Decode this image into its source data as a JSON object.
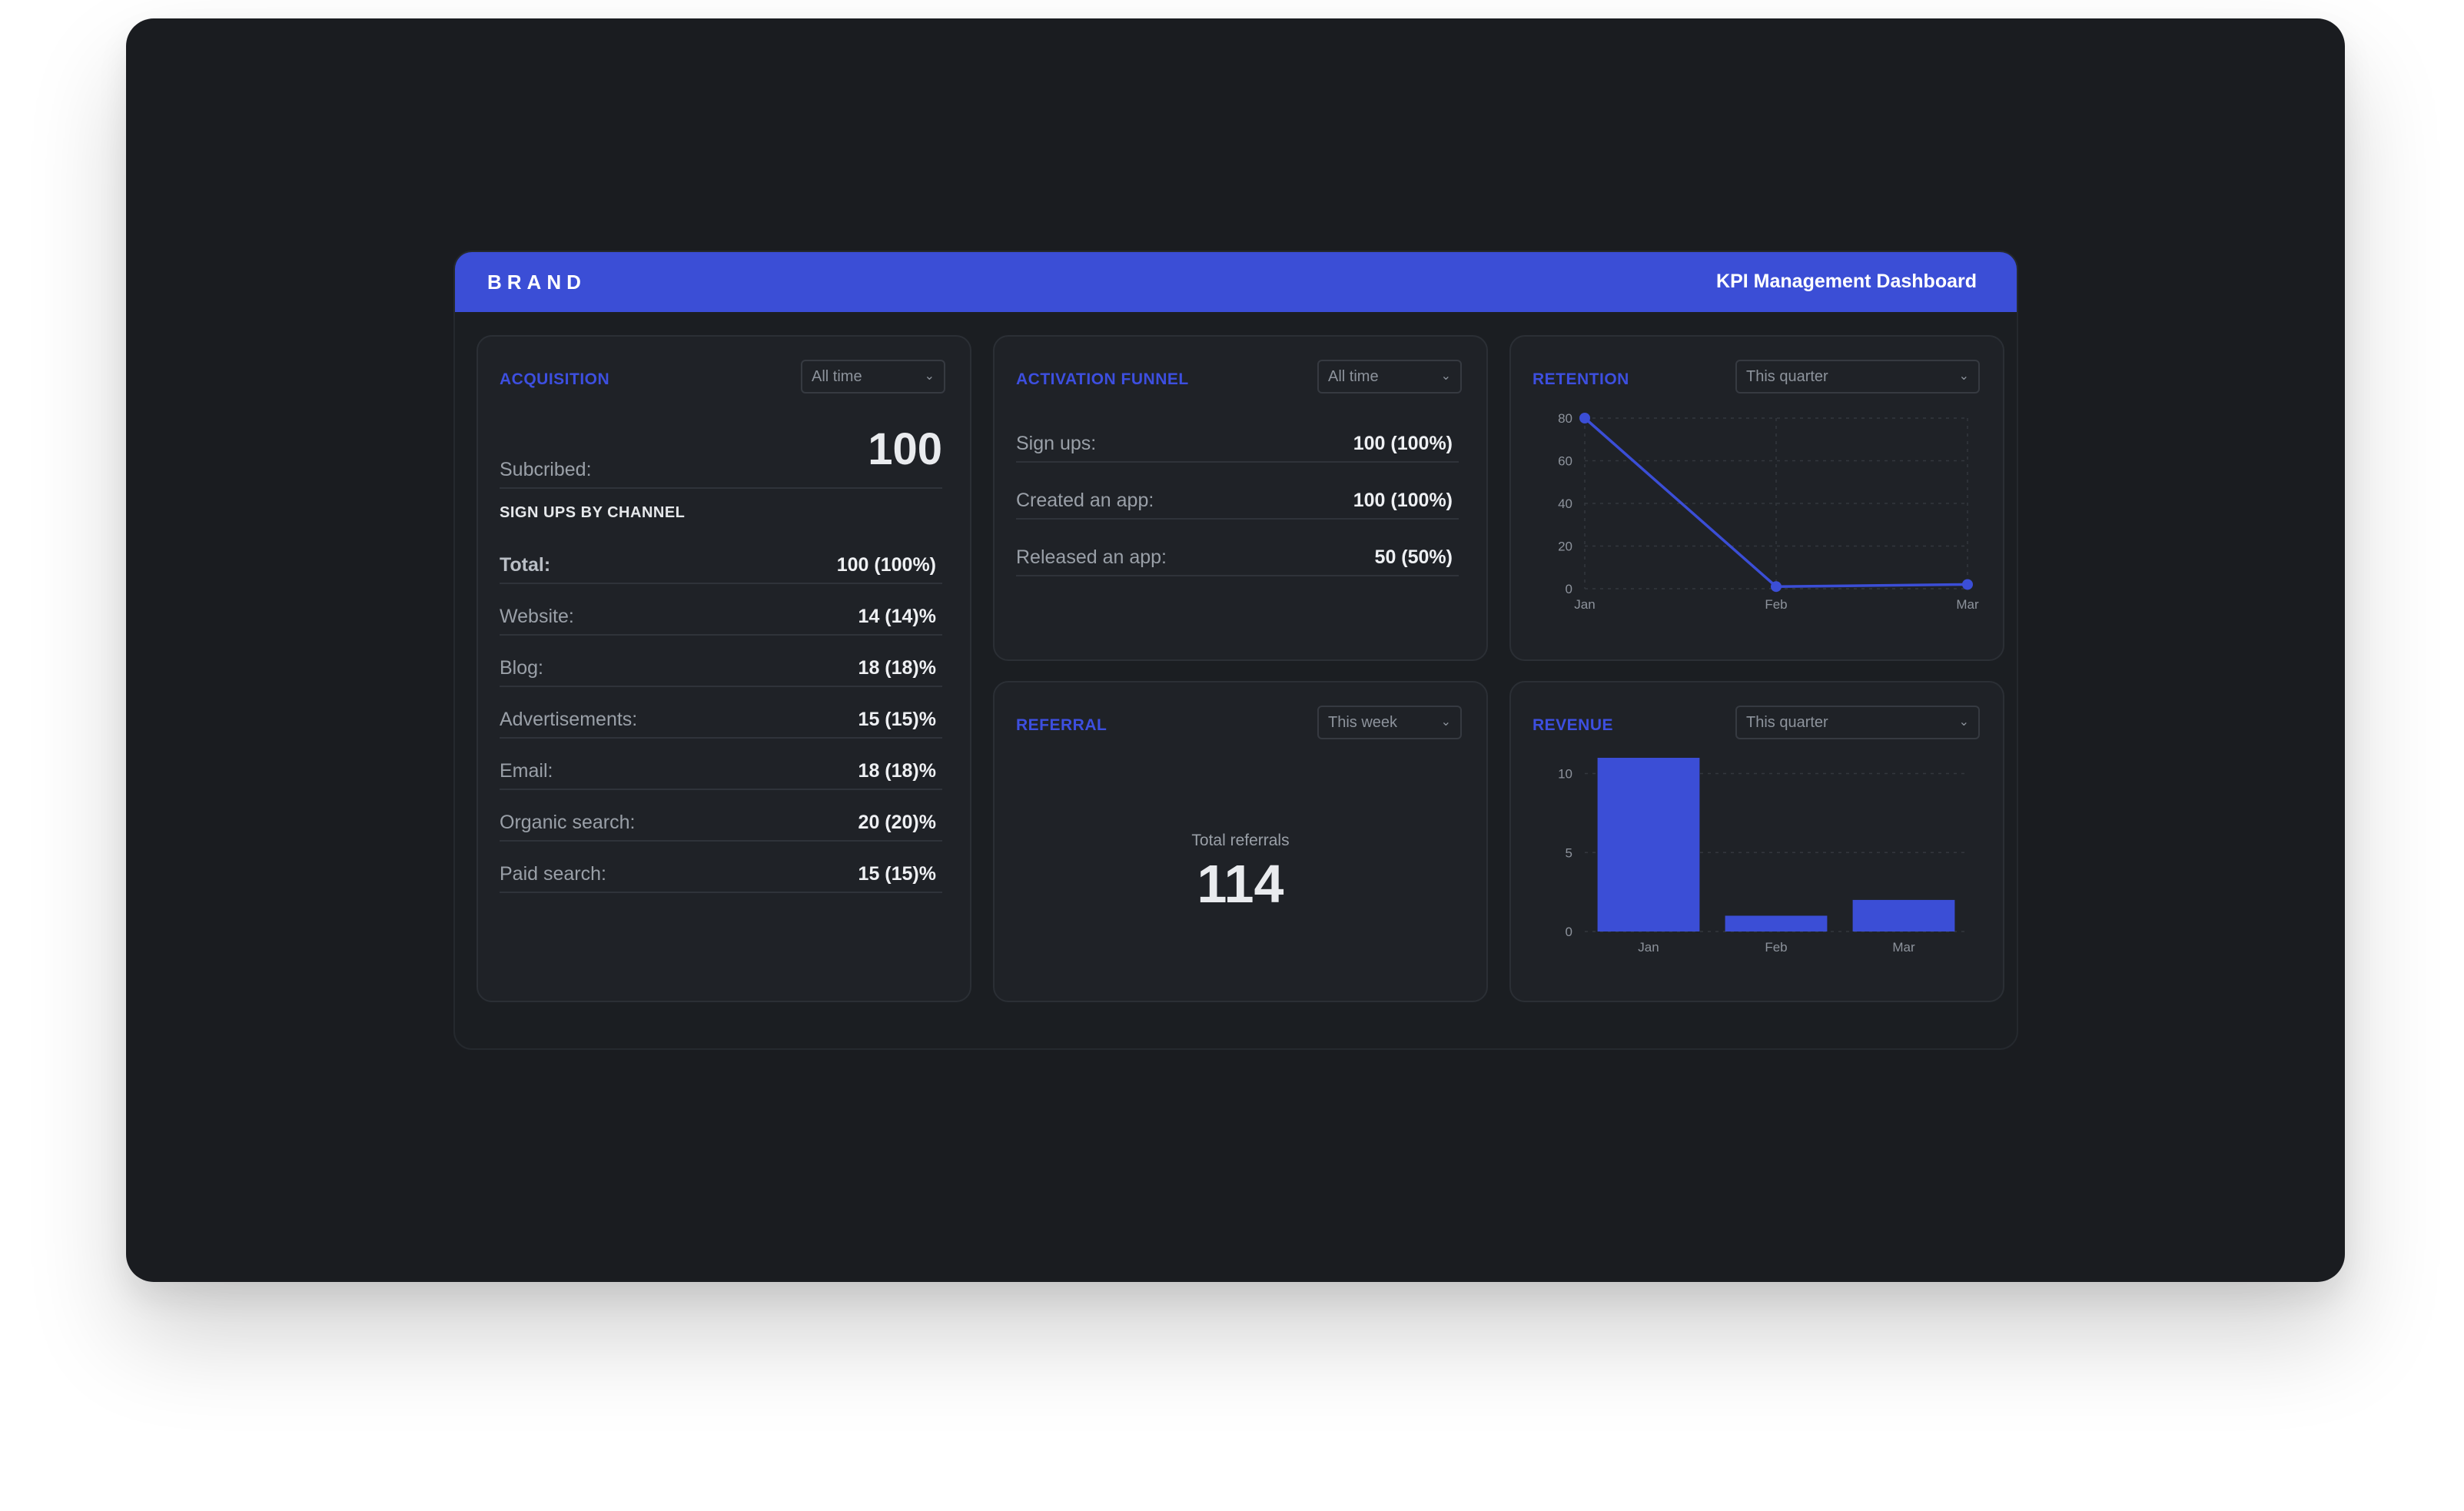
{
  "header": {
    "brand": "BRAND",
    "title": "KPI Management Dashboard"
  },
  "colors": {
    "accent": "#3b4ed6",
    "background": "#1a1c20",
    "card": "#1f2227"
  },
  "acquisition": {
    "title": "ACQUISITION",
    "filter": "All time",
    "subscribed_label": "Subcribed:",
    "subscribed_value": "100",
    "channel_heading": "SIGN UPS BY CHANNEL",
    "rows": [
      {
        "label": "Total:",
        "value": "100 (100%)"
      },
      {
        "label": "Website:",
        "value": "14 (14)%"
      },
      {
        "label": "Blog:",
        "value": "18 (18)%"
      },
      {
        "label": "Advertisements:",
        "value": "15 (15)%"
      },
      {
        "label": "Email:",
        "value": "18 (18)%"
      },
      {
        "label": "Organic search:",
        "value": "20 (20)%"
      },
      {
        "label": "Paid search:",
        "value": "15 (15)%"
      }
    ]
  },
  "activation": {
    "title": "ACTIVATION FUNNEL",
    "filter": "All time",
    "rows": [
      {
        "label": "Sign ups:",
        "value": "100 (100%)"
      },
      {
        "label": "Created an app:",
        "value": "100 (100%)"
      },
      {
        "label": "Released an app:",
        "value": "50 (50%)"
      }
    ]
  },
  "retention": {
    "title": "RETENTION",
    "filter": "This quarter"
  },
  "referral": {
    "title": "REFERRAL",
    "filter": "This week",
    "total_label": "Total referrals",
    "total_value": "114"
  },
  "revenue": {
    "title": "REVENUE",
    "filter": "This quarter"
  },
  "chart_data": [
    {
      "type": "line",
      "title": "RETENTION",
      "categories": [
        "Jan",
        "Feb",
        "Mar"
      ],
      "values": [
        80,
        1,
        2
      ],
      "ylim": [
        0,
        80
      ],
      "yticks": [
        0,
        20,
        40,
        60,
        80
      ],
      "grid": true,
      "color": "#3b4ed6"
    },
    {
      "type": "bar",
      "title": "REVENUE",
      "categories": [
        "Jan",
        "Feb",
        "Mar"
      ],
      "values": [
        11,
        1,
        2
      ],
      "ylim": [
        0,
        11
      ],
      "yticks": [
        0,
        5,
        10
      ],
      "grid": true,
      "color": "#3b4ed6"
    }
  ]
}
